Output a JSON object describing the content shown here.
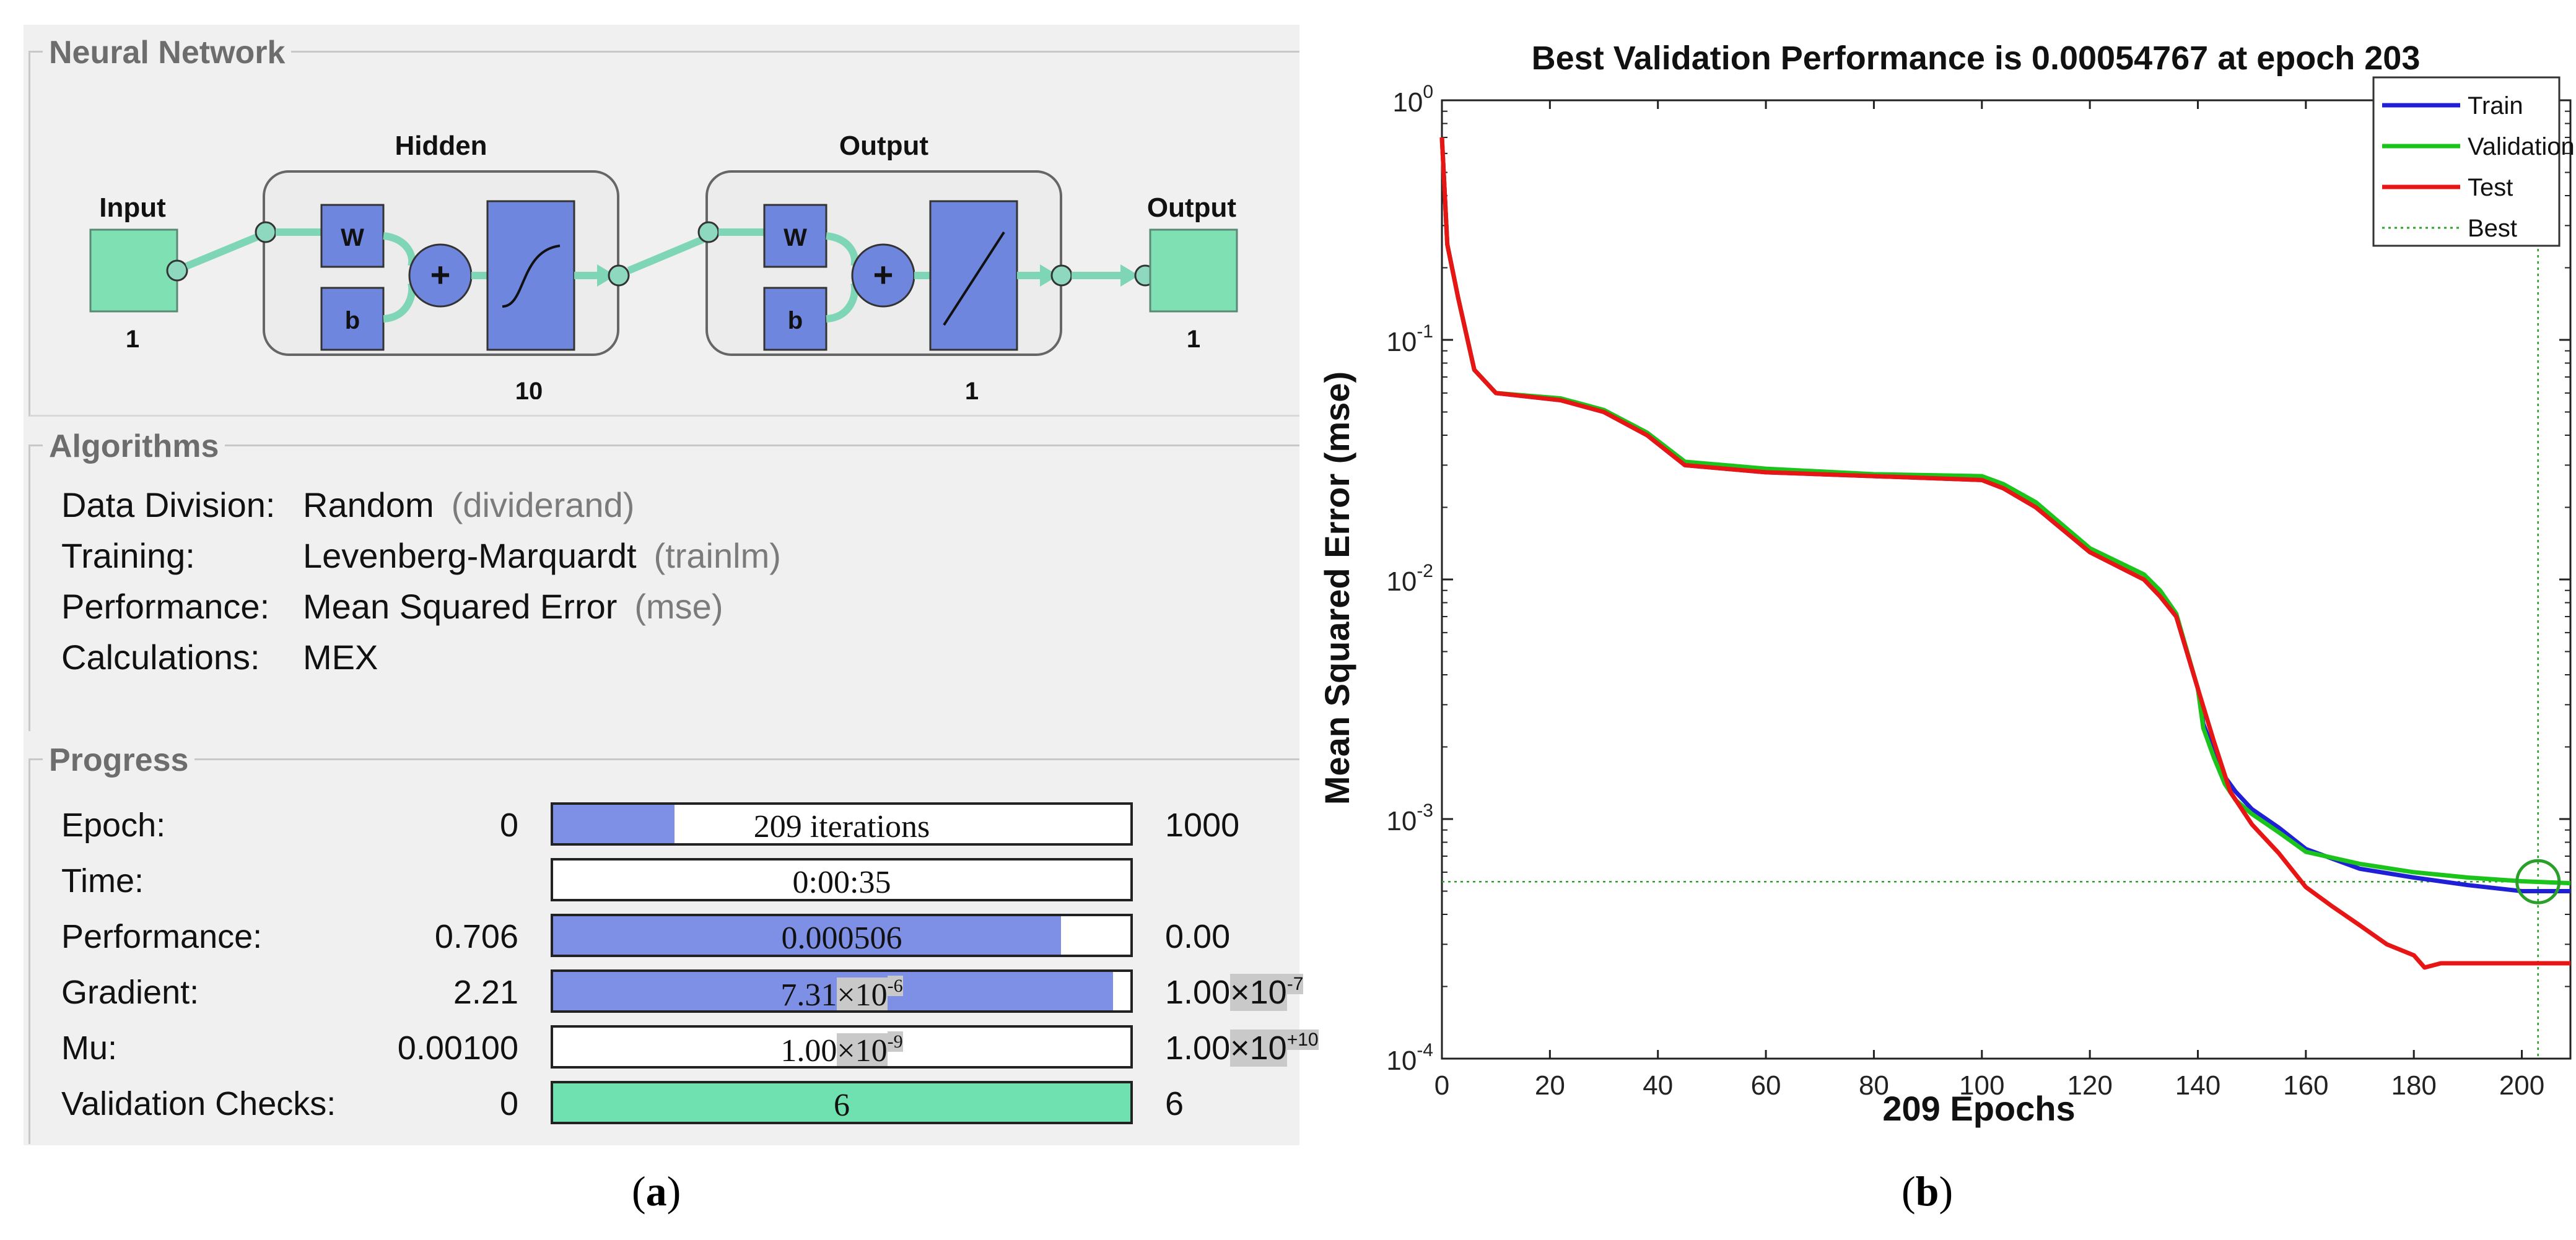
{
  "panel_a": {
    "caption_letter": "a",
    "network": {
      "title": "Neural Network",
      "input_label": "Input",
      "input_size": "1",
      "hidden_title": "Hidden",
      "hidden_size": "10",
      "output_title": "Output",
      "output_size": "1",
      "output_label": "Output",
      "output_out_size": "1",
      "w_label": "W",
      "b_label": "b"
    },
    "algorithms": {
      "title": "Algorithms",
      "rows": [
        {
          "label": "Data Division:",
          "value": "Random",
          "hint": "(dividerand)"
        },
        {
          "label": "Training:",
          "value": "Levenberg-Marquardt",
          "hint": "(trainlm)"
        },
        {
          "label": "Performance:",
          "value": "Mean Squared Error",
          "hint": "(mse)"
        },
        {
          "label": "Calculations:",
          "value": "MEX",
          "hint": ""
        }
      ]
    },
    "progress": {
      "title": "Progress",
      "rows": [
        {
          "label": "Epoch:",
          "start": "0",
          "bar_text": "209 iterations",
          "fill": 0.21,
          "end": "1000"
        },
        {
          "label": "Time:",
          "start": "",
          "bar_text": "0:00:35",
          "fill": 0,
          "end": ""
        },
        {
          "label": "Performance:",
          "start": "0.706",
          "bar_text": "0.000506",
          "fill": 0.88,
          "end": "0.00"
        },
        {
          "label": "Gradient:",
          "start": "2.21",
          "bar_base": "7.31",
          "bar_exp": "-6",
          "fill": 0.97,
          "end_base": "1.00",
          "end_exp": "-7"
        },
        {
          "label": "Mu:",
          "start": "0.00100",
          "bar_base": "1.00",
          "bar_exp": "-9",
          "fill": 0,
          "end_base": "1.00",
          "end_exp": "+10"
        },
        {
          "label": "Validation Checks:",
          "start": "0",
          "bar_text": "6",
          "fill": 1.0,
          "end": "6"
        }
      ],
      "times_sign": "×10"
    }
  },
  "panel_b": {
    "caption_letter": "b",
    "chart_data": {
      "type": "line",
      "title": "Best Validation Performance is 0.00054767 at epoch 203",
      "xlabel": "209 Epochs",
      "ylabel": "Mean Squared Error  (mse)",
      "xlim": [
        0,
        209
      ],
      "ylim": [
        0.0001,
        1
      ],
      "yscale": "log",
      "xticks": [
        0,
        20,
        40,
        60,
        80,
        100,
        120,
        140,
        160,
        180,
        200
      ],
      "yticks": [
        {
          "base": "10",
          "exp": "0"
        },
        {
          "base": "10",
          "exp": "-1"
        },
        {
          "base": "10",
          "exp": "-2"
        },
        {
          "base": "10",
          "exp": "-3"
        },
        {
          "base": "10",
          "exp": "-4"
        }
      ],
      "legend_position": "top-right",
      "best": {
        "epoch": 203,
        "value": 0.00054767
      },
      "series": [
        {
          "name": "Train",
          "color": "#1f1fd6",
          "x": [
            0,
            1,
            3,
            6,
            10,
            22,
            30,
            38,
            45,
            60,
            80,
            100,
            104,
            110,
            120,
            130,
            133,
            136,
            140,
            141,
            143,
            145,
            147,
            150,
            155,
            160,
            170,
            180,
            190,
            200,
            209
          ],
          "y": [
            0.7,
            0.25,
            0.15,
            0.075,
            0.06,
            0.056,
            0.05,
            0.04,
            0.03,
            0.028,
            0.027,
            0.026,
            0.024,
            0.02,
            0.013,
            0.01,
            0.0085,
            0.007,
            0.0035,
            0.0025,
            0.0019,
            0.0015,
            0.0013,
            0.0011,
            0.00092,
            0.00075,
            0.00062,
            0.00057,
            0.00053,
            0.0005,
            0.0005
          ]
        },
        {
          "name": "Validation",
          "color": "#1bc41b",
          "x": [
            0,
            1,
            3,
            6,
            10,
            22,
            30,
            38,
            45,
            60,
            80,
            100,
            104,
            110,
            120,
            130,
            133,
            136,
            140,
            141,
            143,
            145,
            147,
            150,
            155,
            160,
            170,
            180,
            190,
            200,
            209
          ],
          "y": [
            0.7,
            0.25,
            0.15,
            0.075,
            0.06,
            0.057,
            0.051,
            0.041,
            0.031,
            0.029,
            0.0275,
            0.027,
            0.025,
            0.021,
            0.0135,
            0.0105,
            0.009,
            0.0072,
            0.0035,
            0.0024,
            0.0018,
            0.0014,
            0.0012,
            0.00105,
            0.00088,
            0.00073,
            0.00065,
            0.0006,
            0.00057,
            0.00055,
            0.00054
          ]
        },
        {
          "name": "Test",
          "color": "#e81515",
          "x": [
            0,
            1,
            3,
            6,
            10,
            22,
            30,
            38,
            45,
            60,
            80,
            100,
            104,
            110,
            120,
            130,
            133,
            136,
            140,
            143,
            146,
            150,
            155,
            160,
            165,
            170,
            175,
            180,
            182,
            185,
            190,
            200,
            209
          ],
          "y": [
            0.7,
            0.25,
            0.15,
            0.075,
            0.06,
            0.056,
            0.05,
            0.04,
            0.03,
            0.028,
            0.027,
            0.026,
            0.024,
            0.02,
            0.013,
            0.01,
            0.0085,
            0.007,
            0.0035,
            0.0021,
            0.0013,
            0.00095,
            0.00072,
            0.00052,
            0.00043,
            0.00036,
            0.0003,
            0.00027,
            0.00024,
            0.00025,
            0.00025,
            0.00025,
            0.00025
          ]
        }
      ],
      "legend": [
        "Train",
        "Validation",
        "Test",
        "Best"
      ],
      "best_color": "#2aa02a"
    }
  }
}
